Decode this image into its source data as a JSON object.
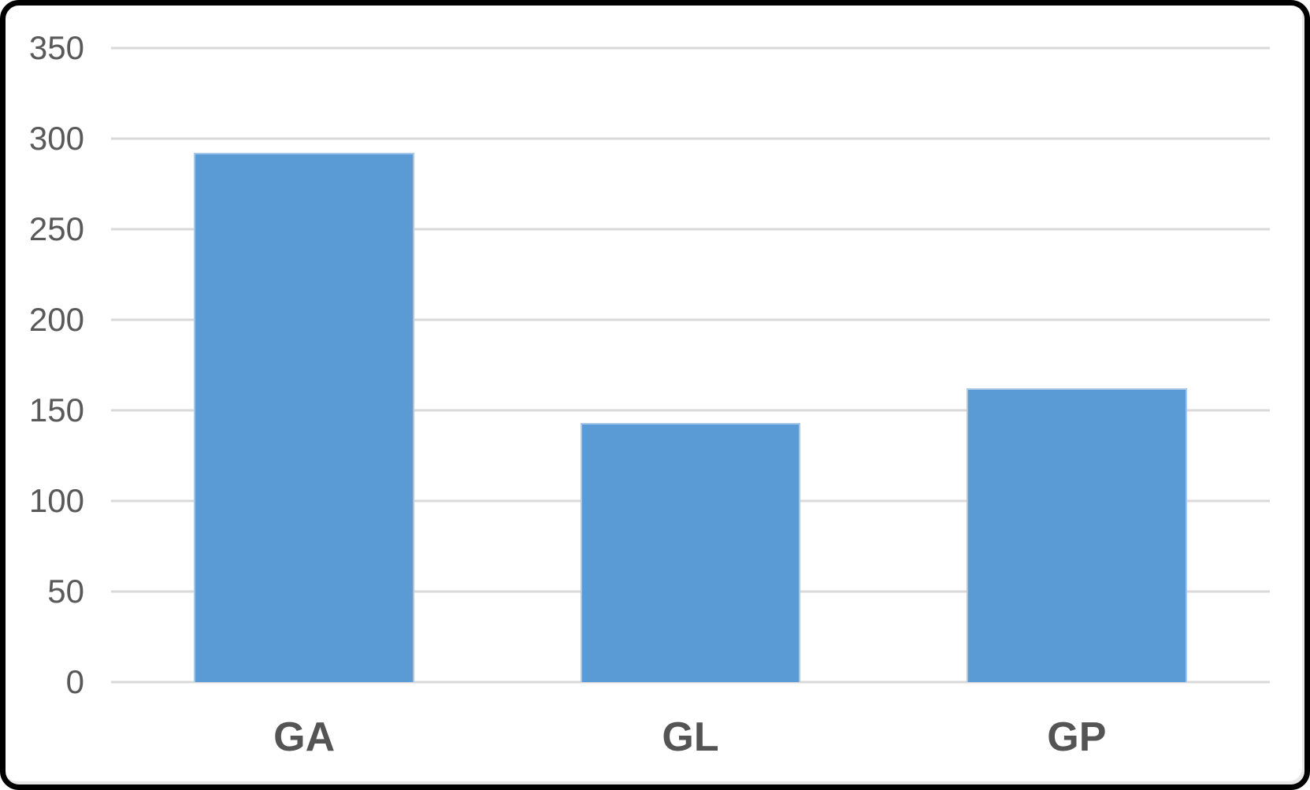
{
  "chart_data": {
    "type": "bar",
    "categories": [
      "GA",
      "GL",
      "GP"
    ],
    "values": [
      292,
      143,
      162
    ],
    "title": "",
    "xlabel": "",
    "ylabel": "",
    "ylim": [
      0,
      350
    ],
    "yticks": [
      0,
      50,
      100,
      150,
      200,
      250,
      300,
      350
    ],
    "grid": true,
    "legend_position": "none",
    "colors": {
      "bar": "#5B9BD5",
      "gridline": "#D9D9D9",
      "axis_tick_label": "#595959",
      "category_label": "#545454",
      "chart_border": "#000000",
      "background": "#FFFFFF"
    },
    "layout_hints": {
      "bar_width_fraction_of_slot": 0.57,
      "gridline_thickness_px": 3
    }
  }
}
